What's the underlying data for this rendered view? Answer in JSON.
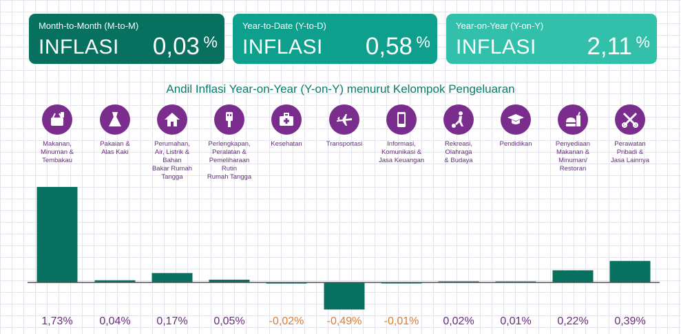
{
  "cards": [
    {
      "sub": "Month-to-Month (M-to-M)",
      "label": "INFLASI",
      "value": "0,03",
      "unit": "%"
    },
    {
      "sub": "Year-to-Date (Y-to-D)",
      "label": "INFLASI",
      "value": "0,58",
      "unit": "%"
    },
    {
      "sub": "Year-on-Year (Y-on-Y)",
      "label": "INFLASI",
      "value": "2,11",
      "unit": "%"
    }
  ],
  "colors": {
    "bar": "#07705f",
    "axis": "#555555",
    "icon_bg": "#7b2d8e",
    "positive_text": "#6a2a80",
    "negative_text": "#e07b2e"
  },
  "chart_data": {
    "type": "bar",
    "title": "Andil Inflasi Year-on-Year (Y-on-Y) menurut Kelompok Pengeluaran",
    "unit": "%",
    "categories": [
      "Makanan, Minuman & Tembakau",
      "Pakaian & Alas Kaki",
      "Perumahan, Air, Listrik & Bahan Bakar Rumah Tangga",
      "Perlengkapan, Peralatan & Pemeliharaan Rutin Rumah Tangga",
      "Kesehatan",
      "Transportasi",
      "Informasi, Komunikasi & Jasa Keuangan",
      "Rekreasi, Olahraga & Budaya",
      "Pendidikan",
      "Penyediaan Makanan & Minuman/ Restoran",
      "Perawatan Pribadi & Jasa Lainnya"
    ],
    "category_lines": [
      [
        "Makanan,",
        "Minuman &",
        "Tembakau"
      ],
      [
        "Pakaian &",
        "Alas Kaki"
      ],
      [
        "Perumahan,",
        "Air, Listrik &",
        "Bahan",
        "Bakar Rumah",
        "Tangga"
      ],
      [
        "Perlengkapan,",
        "Peralatan &",
        "Pemeliharaan",
        "Rutin",
        "Rumah Tangga"
      ],
      [
        "Kesehatan"
      ],
      [
        "Transportasi"
      ],
      [
        "Informasi,",
        "Komunikasi &",
        "Jasa Keuangan"
      ],
      [
        "Rekreasi,",
        "Olahraga",
        "& Budaya"
      ],
      [
        "Pendidikan"
      ],
      [
        "Penyediaan",
        "Makanan &",
        "Minuman/",
        "Restoran"
      ],
      [
        "Perawatan",
        "Pribadi &",
        "Jasa Lainnya"
      ]
    ],
    "icons": [
      "food-basket-icon",
      "dress-icon",
      "house-icon",
      "plug-icon",
      "medical-kit-icon",
      "airplane-icon",
      "smartphone-icon",
      "soccer-player-icon",
      "graduation-cap-icon",
      "burger-drink-icon",
      "scissors-comb-icon"
    ],
    "values": [
      1.73,
      0.04,
      0.17,
      0.05,
      -0.02,
      -0.49,
      -0.01,
      0.02,
      0.01,
      0.22,
      0.39
    ],
    "value_labels": [
      "1,73%",
      "0,04%",
      "0,17%",
      "0,05%",
      "-0,02%",
      "-0,49%",
      "-0,01%",
      "0,02%",
      "0,01%",
      "0,22%",
      "0,39%"
    ]
  }
}
